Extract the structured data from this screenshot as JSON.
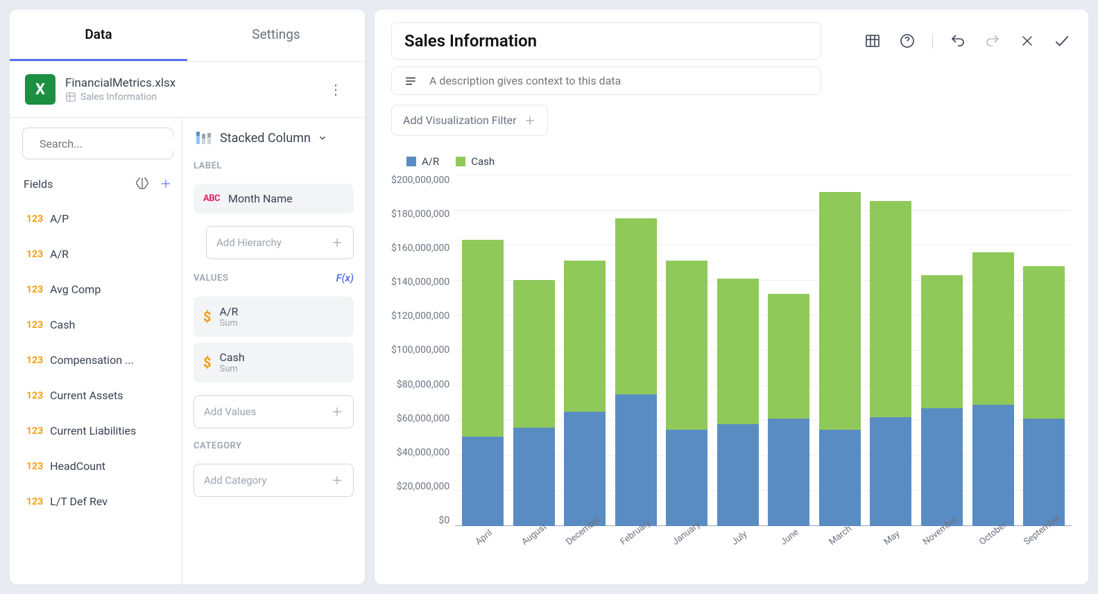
{
  "tabs": {
    "data": "Data",
    "settings": "Settings",
    "active": "data"
  },
  "datasource": {
    "name": "FinancialMetrics.xlsx",
    "sheet": "Sales Information"
  },
  "search": {
    "placeholder": "Search..."
  },
  "fields_header": "Fields",
  "fields": [
    {
      "type": "123",
      "name": "A/P"
    },
    {
      "type": "123",
      "name": "A/R"
    },
    {
      "type": "123",
      "name": "Avg Comp"
    },
    {
      "type": "123",
      "name": "Cash"
    },
    {
      "type": "123",
      "name": "Compensation ..."
    },
    {
      "type": "123",
      "name": "Current Assets"
    },
    {
      "type": "123",
      "name": "Current Liabilities"
    },
    {
      "type": "123",
      "name": "HeadCount"
    },
    {
      "type": "123",
      "name": "L/T Def Rev"
    }
  ],
  "chart_type": "Stacked Column",
  "sections": {
    "label": "LABEL",
    "values": "VALUES",
    "fx": "F(x)",
    "category": "CATEGORY"
  },
  "labelChip": {
    "prefix": "ABC",
    "text": "Month Name"
  },
  "addHierarchy": "Add Hierarchy",
  "valueChips": [
    {
      "name": "A/R",
      "agg": "Sum"
    },
    {
      "name": "Cash",
      "agg": "Sum"
    }
  ],
  "addValues": "Add Values",
  "addCategory": "Add Category",
  "viz": {
    "title": "Sales Information",
    "desc_placeholder": "A description gives context to this data",
    "filter_btn": "Add Visualization Filter"
  },
  "chart": {
    "type": "stacked-bar",
    "ymax": 200000000,
    "yticks": [
      "$200,000,000",
      "$180,000,000",
      "$160,000,000",
      "$140,000,000",
      "$120,000,000",
      "$100,000,000",
      "$80,000,000",
      "$60,000,000",
      "$40,000,000",
      "$20,000,000",
      "$0"
    ],
    "series": [
      {
        "name": "A/R",
        "color": "#5a8cc4"
      },
      {
        "name": "Cash",
        "color": "#8fc95a"
      }
    ],
    "categories": [
      {
        "label": "April",
        "values": [
          51000000,
          112000000
        ]
      },
      {
        "label": "August",
        "values": [
          56000000,
          84000000
        ]
      },
      {
        "label": "December",
        "values": [
          65000000,
          86000000
        ]
      },
      {
        "label": "February",
        "values": [
          75000000,
          100000000
        ]
      },
      {
        "label": "January",
        "values": [
          55000000,
          96000000
        ]
      },
      {
        "label": "July",
        "values": [
          58000000,
          83000000
        ]
      },
      {
        "label": "June",
        "values": [
          61000000,
          71000000
        ]
      },
      {
        "label": "March",
        "values": [
          55000000,
          135000000
        ]
      },
      {
        "label": "May",
        "values": [
          62000000,
          123000000
        ]
      },
      {
        "label": "November",
        "values": [
          67000000,
          76000000
        ]
      },
      {
        "label": "October",
        "values": [
          69000000,
          87000000
        ]
      },
      {
        "label": "September",
        "values": [
          61000000,
          87000000
        ]
      }
    ]
  }
}
